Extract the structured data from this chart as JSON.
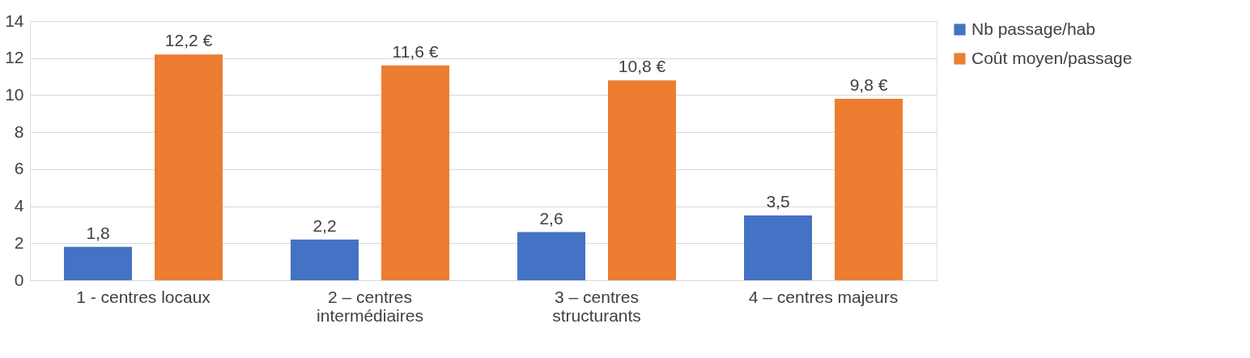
{
  "chart_data": {
    "type": "bar",
    "categories": [
      "1 - centres locaux",
      "2 – centres intermédiaires",
      "3 – centres structurants",
      "4 – centres majeurs"
    ],
    "series": [
      {
        "name": "Nb passage/hab",
        "color": "#4472c4",
        "values": [
          1.8,
          2.2,
          2.6,
          3.5
        ],
        "value_labels": [
          "1,8",
          "2,2",
          "2,6",
          "3,5"
        ]
      },
      {
        "name": "Coût moyen/passage",
        "color": "#ed7d31",
        "values": [
          12.2,
          11.6,
          10.8,
          9.8
        ],
        "value_labels": [
          "12,2 €",
          "11,6 €",
          "10,8 €",
          "9,8 €"
        ]
      }
    ],
    "ylim": [
      0,
      14
    ],
    "yticks": [
      0,
      2,
      4,
      6,
      8,
      10,
      12,
      14
    ],
    "grid": "y",
    "legend": "right"
  }
}
